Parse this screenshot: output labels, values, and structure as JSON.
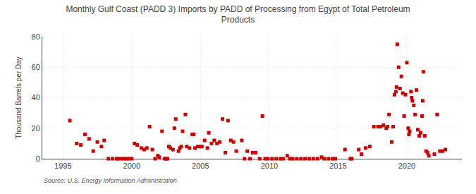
{
  "chart_data": {
    "type": "scatter",
    "title": "Monthly Gulf Coast (PADD 3) Imports by PADD of Processing from Egypt of Total Petroleum\nProducts",
    "ylabel": "Thousand Barrels per Day",
    "source": "Source: U.S. Energy Information Administration",
    "color": "#cc0000",
    "marker": "square",
    "grid": true,
    "xlim": [
      1993.5,
      2024.0
    ],
    "ylim": [
      0,
      80
    ],
    "xticks": [
      1995,
      2000,
      2005,
      2010,
      2015,
      2020
    ],
    "yticks": [
      0,
      20,
      40,
      60,
      80
    ],
    "x": [
      1995.5,
      1996.0,
      1996.3,
      1996.6,
      1996.9,
      1997.2,
      1997.5,
      1997.8,
      1998.0,
      1998.3,
      1998.6,
      1998.9,
      1999.0,
      1999.2,
      1999.4,
      1999.6,
      1999.8,
      2000.0,
      2000.2,
      2000.4,
      2000.7,
      2000.9,
      2001.1,
      2001.3,
      2001.5,
      2001.7,
      2001.9,
      2002.0,
      2002.2,
      2002.4,
      2002.5,
      2002.6,
      2002.7,
      2002.8,
      2003.0,
      2003.1,
      2003.2,
      2003.4,
      2003.5,
      2003.6,
      2003.7,
      2003.9,
      2004.0,
      2004.2,
      2004.4,
      2004.5,
      2004.6,
      2004.8,
      2005.0,
      2005.1,
      2005.3,
      2005.5,
      2005.6,
      2005.8,
      2006.0,
      2006.2,
      2006.4,
      2006.6,
      2006.8,
      2007.0,
      2007.2,
      2007.4,
      2007.6,
      2008.0,
      2008.2,
      2008.4,
      2008.6,
      2008.8,
      2009.0,
      2009.3,
      2009.5,
      2009.7,
      2009.9,
      2010.2,
      2010.5,
      2010.8,
      2011.0,
      2011.3,
      2011.5,
      2011.7,
      2012.0,
      2012.3,
      2012.6,
      2012.9,
      2013.2,
      2013.5,
      2013.8,
      2014.0,
      2014.3,
      2014.6,
      2014.8,
      2015.5,
      2015.9,
      2016.0,
      2016.5,
      2016.7,
      2017.0,
      2017.3,
      2017.6,
      2017.9,
      2018.1,
      2018.3,
      2018.5,
      2018.6,
      2018.7,
      2018.9,
      2019.0,
      2019.1,
      2019.2,
      2019.25,
      2019.3,
      2019.4,
      2019.5,
      2019.6,
      2019.7,
      2019.8,
      2019.9,
      2020.0,
      2020.1,
      2020.15,
      2020.2,
      2020.3,
      2020.35,
      2020.4,
      2020.5,
      2020.6,
      2020.7,
      2020.8,
      2020.9,
      2021.0,
      2021.1,
      2021.15,
      2021.2,
      2021.3,
      2021.4,
      2021.5,
      2021.6,
      2022.0,
      2022.2,
      2022.4,
      2022.6,
      2022.8
    ],
    "values": [
      25,
      10,
      9,
      16,
      13,
      5,
      11,
      8,
      12,
      0,
      0,
      0,
      0,
      0,
      0,
      0,
      0,
      0,
      10,
      9,
      7,
      6,
      7,
      21,
      6,
      0,
      2,
      1,
      18,
      0,
      0,
      0,
      8,
      7,
      6,
      20,
      26,
      5,
      7,
      8,
      18,
      29,
      8,
      7,
      16,
      16,
      7,
      8,
      8,
      8,
      12,
      7,
      17,
      10,
      12,
      10,
      11,
      26,
      4,
      25,
      12,
      11,
      5,
      12,
      0,
      5,
      0,
      4,
      4,
      0,
      28,
      0,
      0,
      0,
      0,
      0,
      0,
      2,
      0,
      0,
      0,
      0,
      0,
      0,
      0,
      0,
      1,
      0,
      0,
      0,
      0,
      6,
      0,
      0,
      6,
      3,
      7,
      8,
      21,
      21,
      21,
      22,
      20,
      21,
      29,
      11,
      21,
      42,
      44,
      47,
      75,
      60,
      46,
      54,
      43,
      28,
      42,
      63,
      20,
      16,
      18,
      44,
      40,
      38,
      35,
      29,
      45,
      19,
      15,
      17,
      28,
      38,
      57,
      15,
      5,
      4,
      2,
      3,
      29,
      5,
      5,
      6
    ]
  }
}
